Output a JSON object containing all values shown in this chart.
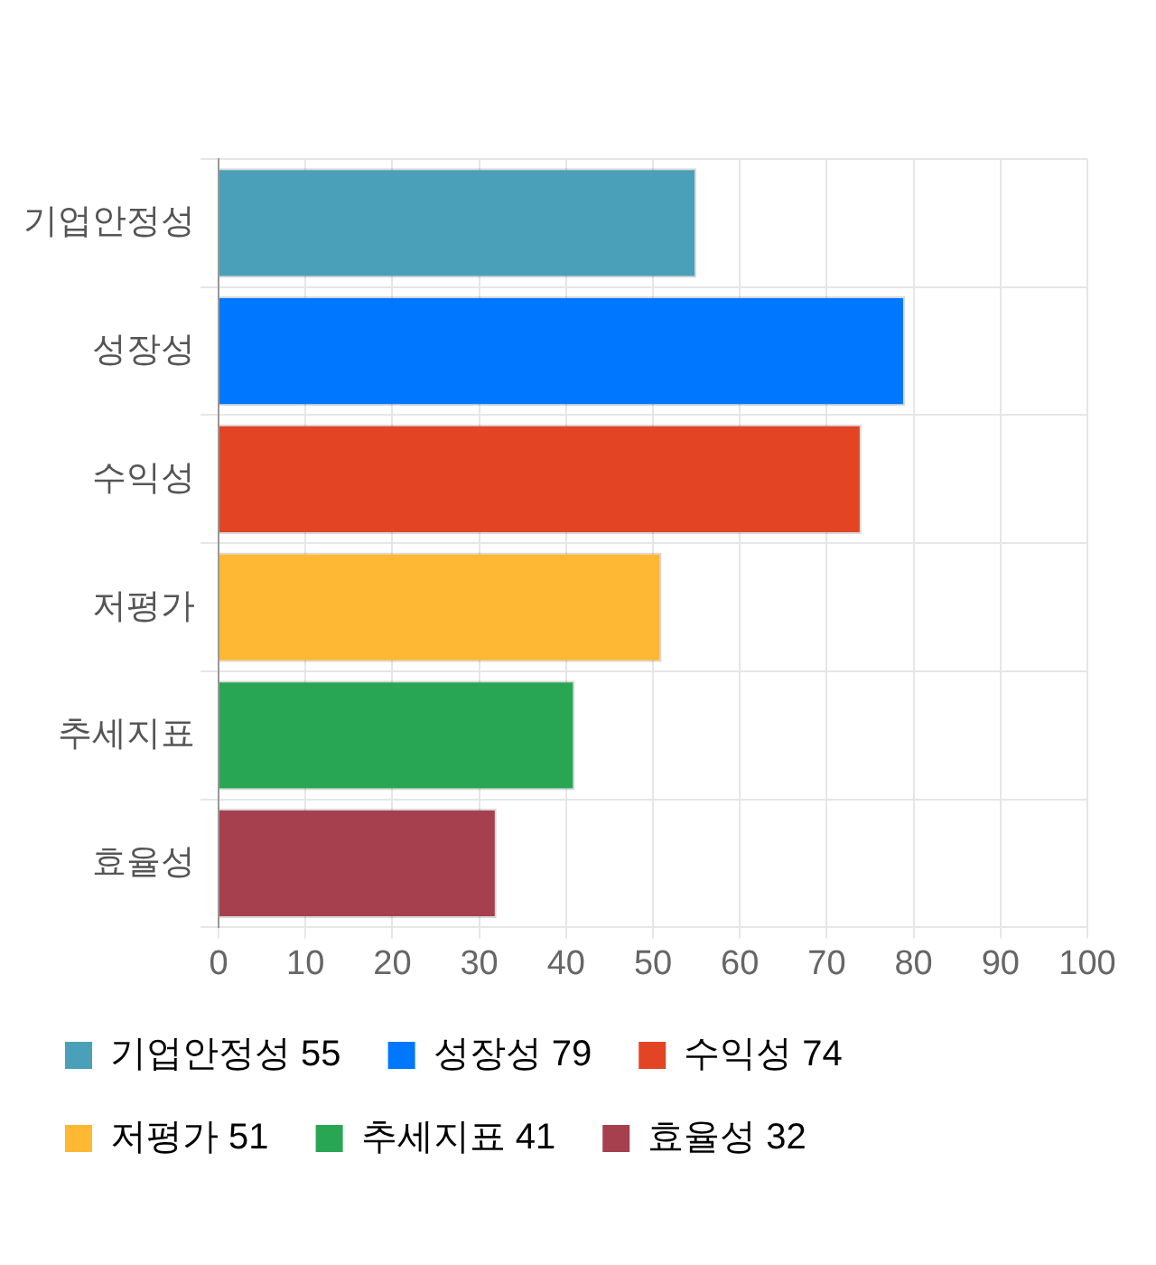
{
  "chart_data": {
    "type": "bar",
    "orientation": "horizontal",
    "stacked": true,
    "categories": [
      "기업안정성",
      "성장성",
      "수익성",
      "저평가",
      "추세지표",
      "효율성"
    ],
    "series": [
      {
        "name": "기업안정성 55",
        "color": "#4aa0b8",
        "values": [
          55,
          null,
          null,
          null,
          null,
          null
        ]
      },
      {
        "name": "성장성 79",
        "color": "#0077ff",
        "values": [
          null,
          79,
          null,
          null,
          null,
          null
        ]
      },
      {
        "name": "수익성 74",
        "color": "#e34424",
        "values": [
          null,
          null,
          74,
          null,
          null,
          null
        ]
      },
      {
        "name": "저평가 51",
        "color": "#ffb833",
        "values": [
          null,
          null,
          null,
          51,
          null,
          null
        ]
      },
      {
        "name": "추세지표 41",
        "color": "#29a654",
        "values": [
          null,
          null,
          null,
          null,
          41,
          null
        ]
      },
      {
        "name": "효율성 32",
        "color": "#a6404f",
        "values": [
          null,
          null,
          null,
          null,
          null,
          32
        ]
      }
    ],
    "xlim": [
      0,
      100
    ],
    "xticks": [
      0,
      10,
      20,
      30,
      40,
      50,
      60,
      70,
      80,
      90,
      100
    ],
    "grid": true,
    "legend": "bottom"
  }
}
